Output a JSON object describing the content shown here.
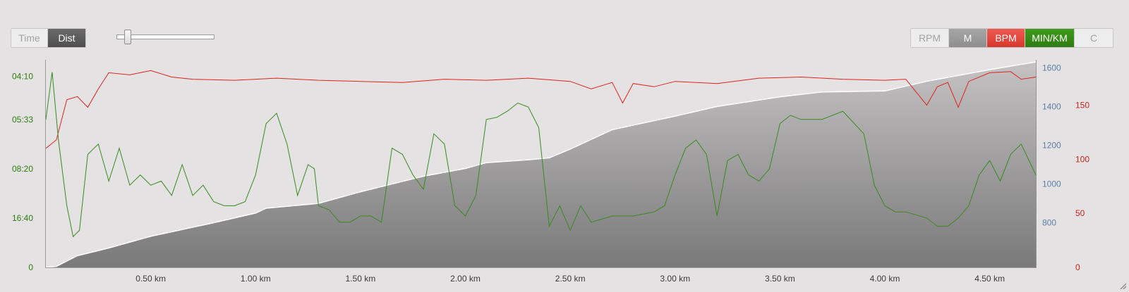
{
  "toolbar": {
    "mode_buttons": [
      {
        "label": "Time",
        "active": false
      },
      {
        "label": "Dist",
        "active": true
      }
    ],
    "metric_buttons": [
      {
        "label": "RPM",
        "active": false
      },
      {
        "label": "M",
        "active": true
      },
      {
        "label": "BPM",
        "active": true
      },
      {
        "label": "MIN/KM",
        "active": true
      },
      {
        "label": "C",
        "active": false
      }
    ],
    "zoom_slider_value": 0.1
  },
  "colors": {
    "pace": "#3a8a1e",
    "heart_rate": "#e0231c",
    "elevation_axis": "#5f7ea6",
    "pace_axis": "#2f7d10",
    "bpm_axis": "#d42118"
  },
  "chart_data": {
    "type": "line",
    "x_unit": "km",
    "xlim": [
      0,
      4.72
    ],
    "x_ticks": [
      "0.50 km",
      "1.00 km",
      "1.50 km",
      "2.00 km",
      "2.50 km",
      "3.00 km",
      "3.50 km",
      "4.00 km",
      "4.50 km"
    ],
    "axes": {
      "pace": {
        "side": "left",
        "ticks": [
          "04:10",
          "05:33",
          "08:20",
          "16:40",
          "0"
        ],
        "tick_positions": [
          0.93,
          0.72,
          0.48,
          0.24,
          0
        ]
      },
      "elevation": {
        "side": "right-inner",
        "ticks": [
          "800",
          "1000",
          "1200",
          "1400",
          "1600"
        ],
        "ylim": [
          570,
          1630
        ]
      },
      "heart_rate": {
        "side": "right-outer",
        "ticks": [
          "0",
          "50",
          "100",
          "150"
        ],
        "ylim": [
          0,
          190
        ]
      }
    },
    "grid": false,
    "series": [
      {
        "name": "M",
        "kind": "area",
        "axis": "elevation",
        "x": [
          0,
          0.05,
          0.15,
          0.3,
          0.5,
          0.8,
          1.0,
          1.05,
          1.3,
          1.5,
          1.8,
          2.0,
          2.1,
          2.3,
          2.4,
          2.5,
          2.7,
          3.0,
          3.2,
          3.5,
          3.7,
          4.0,
          4.2,
          4.4,
          4.5,
          4.72
        ],
        "values": [
          570,
          575,
          630,
          670,
          730,
          800,
          850,
          875,
          900,
          960,
          1040,
          1080,
          1110,
          1125,
          1135,
          1180,
          1280,
          1350,
          1400,
          1450,
          1475,
          1480,
          1530,
          1570,
          1590,
          1630
        ]
      },
      {
        "name": "BPM",
        "kind": "line",
        "axis": "heart_rate",
        "x": [
          0,
          0.05,
          0.1,
          0.15,
          0.2,
          0.25,
          0.3,
          0.4,
          0.5,
          0.6,
          0.7,
          0.9,
          1.1,
          1.3,
          1.5,
          1.7,
          1.9,
          2.1,
          2.3,
          2.5,
          2.6,
          2.7,
          2.75,
          2.8,
          2.9,
          3.0,
          3.2,
          3.4,
          3.6,
          3.8,
          4.0,
          4.1,
          4.2,
          4.25,
          4.3,
          4.35,
          4.4,
          4.5,
          4.6,
          4.65,
          4.72
        ],
        "values": [
          110,
          118,
          155,
          158,
          148,
          165,
          180,
          178,
          182,
          176,
          174,
          173,
          175,
          173,
          172,
          171,
          174,
          173,
          175,
          172,
          165,
          171,
          152,
          170,
          167,
          172,
          170,
          175,
          176,
          174,
          173,
          174,
          150,
          167,
          171,
          148,
          172,
          180,
          181,
          174,
          176
        ]
      },
      {
        "name": "MIN/KM",
        "kind": "line",
        "axis": "pace",
        "x": [
          0,
          0.03,
          0.06,
          0.1,
          0.13,
          0.16,
          0.2,
          0.25,
          0.3,
          0.35,
          0.4,
          0.45,
          0.5,
          0.55,
          0.6,
          0.65,
          0.7,
          0.75,
          0.8,
          0.85,
          0.9,
          0.95,
          1.0,
          1.05,
          1.1,
          1.15,
          1.2,
          1.25,
          1.28,
          1.3,
          1.35,
          1.4,
          1.45,
          1.5,
          1.55,
          1.6,
          1.65,
          1.7,
          1.75,
          1.8,
          1.85,
          1.9,
          1.95,
          2.0,
          2.05,
          2.1,
          2.15,
          2.2,
          2.25,
          2.3,
          2.35,
          2.4,
          2.45,
          2.5,
          2.55,
          2.6,
          2.7,
          2.8,
          2.9,
          2.95,
          3.0,
          3.05,
          3.1,
          3.15,
          3.2,
          3.25,
          3.3,
          3.35,
          3.4,
          3.45,
          3.5,
          3.55,
          3.6,
          3.7,
          3.8,
          3.9,
          3.95,
          4.0,
          4.05,
          4.1,
          4.2,
          4.25,
          4.3,
          4.35,
          4.4,
          4.45,
          4.5,
          4.55,
          4.6,
          4.65,
          4.72
        ],
        "values": [
          0.72,
          0.95,
          0.62,
          0.3,
          0.15,
          0.18,
          0.55,
          0.6,
          0.42,
          0.58,
          0.4,
          0.45,
          0.4,
          0.42,
          0.35,
          0.5,
          0.35,
          0.4,
          0.32,
          0.3,
          0.3,
          0.32,
          0.45,
          0.7,
          0.75,
          0.6,
          0.35,
          0.5,
          0.48,
          0.3,
          0.28,
          0.22,
          0.22,
          0.25,
          0.25,
          0.22,
          0.58,
          0.55,
          0.45,
          0.38,
          0.65,
          0.6,
          0.3,
          0.25,
          0.35,
          0.72,
          0.73,
          0.76,
          0.8,
          0.78,
          0.68,
          0.2,
          0.3,
          0.18,
          0.3,
          0.22,
          0.25,
          0.25,
          0.27,
          0.3,
          0.45,
          0.58,
          0.62,
          0.55,
          0.25,
          0.52,
          0.55,
          0.45,
          0.42,
          0.48,
          0.7,
          0.74,
          0.72,
          0.72,
          0.76,
          0.65,
          0.4,
          0.3,
          0.27,
          0.27,
          0.24,
          0.2,
          0.2,
          0.24,
          0.3,
          0.45,
          0.52,
          0.42,
          0.55,
          0.6,
          0.45
        ]
      }
    ]
  }
}
